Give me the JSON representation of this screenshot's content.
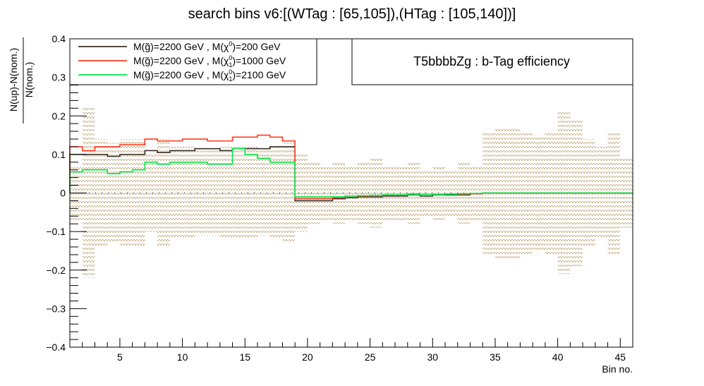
{
  "chart_data": {
    "type": "line",
    "title": "search bins v6:[(WTag : [65,105]),(HTag : [105,140])]",
    "xlabel": "Bin no.",
    "ylabel": "N(up)-N(nom.) / N(nom.)",
    "ylabel_num": "N(up)-N(nom.)",
    "ylabel_den": "N(nom.)",
    "xlim": [
      1,
      46
    ],
    "ylim": [
      -0.4,
      0.4
    ],
    "xticks": [
      5,
      10,
      15,
      20,
      25,
      30,
      35,
      40,
      45
    ],
    "xtick_labels": [
      "5",
      "10",
      "15",
      "20",
      "25",
      "30",
      "35",
      "40",
      "45"
    ],
    "yticks": [
      -0.4,
      -0.3,
      -0.2,
      -0.1,
      0,
      0.1,
      0.2,
      0.3,
      0.4
    ],
    "ytick_labels": [
      "−0.4",
      "−0.3",
      "−0.2",
      "−0.1",
      "0",
      "0.1",
      "0.2",
      "0.3",
      "0.4"
    ],
    "grid": false,
    "legend_position": "top-left",
    "annotation": "T5bbbbZg : b-Tag efficiency",
    "uncertainty_band": {
      "color": "#b8a070",
      "half_width": [
        0.07,
        0.22,
        0.14,
        0.13,
        0.14,
        0.14,
        0.1,
        0.14,
        0.12,
        0.12,
        0.11,
        0.11,
        0.12,
        0.12,
        0.12,
        0.11,
        0.12,
        0.13,
        0.1,
        0.08,
        0.07,
        0.08,
        0.07,
        0.08,
        0.09,
        0.07,
        0.07,
        0.08,
        0.06,
        0.07,
        0.06,
        0.08,
        0.07,
        0.16,
        0.17,
        0.17,
        0.16,
        0.15,
        0.16,
        0.21,
        0.19,
        0.14,
        0.12,
        0.16,
        0.09
      ]
    },
    "series": [
      {
        "name": "M(g̃)=2200 GeV , M(χ⁰)=200 GeV",
        "name_main": "M(g̃)=2200 GeV , M(χ",
        "name_sup": "0",
        "name_sub": "",
        "name_tail": ")=200 GeV",
        "color": "#3b3126",
        "values": [
          0.1,
          0.1,
          0.1,
          0.095,
          0.1,
          0.1,
          0.11,
          0.105,
          0.11,
          0.11,
          0.115,
          0.115,
          0.11,
          0.115,
          0.115,
          0.115,
          0.12,
          0.12,
          -0.02,
          -0.02,
          -0.02,
          -0.015,
          -0.012,
          -0.01,
          -0.01,
          -0.008,
          -0.008,
          -0.005,
          -0.008,
          -0.005,
          -0.005,
          -0.005,
          -0.002,
          0,
          0,
          0,
          0,
          0,
          0,
          0,
          0,
          0,
          0,
          0,
          0
        ]
      },
      {
        "name": "M(g̃)=2200 GeV , M(χ⁰₁)=1000 GeV",
        "name_main": "M(g̃)=2200 GeV , M(χ",
        "name_sup": "0",
        "name_sub": "1",
        "name_tail": ")=1000 GeV",
        "color": "#ff3b1f",
        "values": [
          0.12,
          0.11,
          0.12,
          0.12,
          0.125,
          0.125,
          0.14,
          0.135,
          0.135,
          0.14,
          0.14,
          0.135,
          0.135,
          0.145,
          0.145,
          0.15,
          0.145,
          0.135,
          -0.015,
          -0.015,
          -0.015,
          -0.012,
          -0.008,
          -0.008,
          -0.006,
          -0.005,
          -0.005,
          -0.003,
          -0.004,
          -0.004,
          -0.003,
          -0.003,
          -0.002,
          0,
          0,
          0,
          0,
          0,
          0,
          0,
          0,
          0,
          0,
          0,
          0
        ]
      },
      {
        "name": "M(g̃)=2200 GeV , M(χ⁰₁)=2100 GeV",
        "name_main": "M(g̃)=2200 GeV , M(χ",
        "name_sup": "0",
        "name_sub": "1",
        "name_tail": ")=2100 GeV",
        "color": "#00e84a",
        "values": [
          0.055,
          0.06,
          0.06,
          0.05,
          0.055,
          0.06,
          0.08,
          0.075,
          0.08,
          0.08,
          0.08,
          0.075,
          0.075,
          0.115,
          0.1,
          0.09,
          0.08,
          0.08,
          -0.01,
          -0.01,
          -0.01,
          -0.01,
          -0.008,
          -0.007,
          -0.006,
          -0.005,
          -0.005,
          -0.004,
          -0.004,
          -0.004,
          -0.003,
          -0.002,
          -0.001,
          0,
          0,
          0,
          0,
          0,
          0,
          0,
          0,
          0,
          0,
          0,
          0
        ]
      }
    ]
  }
}
